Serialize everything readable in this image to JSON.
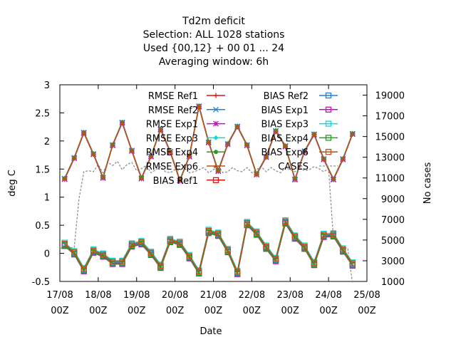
{
  "chart_data": {
    "type": "line",
    "title_lines": [
      "Td2m deficit",
      "Selection: ALL    1028 stations",
      "Used {00,12} + 00 01 ... 24",
      "Averaging window:  6h"
    ],
    "xlabel": "Date",
    "ylabel": "deg C",
    "y2label": "No cases",
    "xlim": [
      0,
      192
    ],
    "ylim": [
      -0.5,
      3
    ],
    "y2lim": [
      1000,
      20000
    ],
    "grid": false,
    "legend_position": "top-inside",
    "x_ticks": [
      {
        "x": 0,
        "line1": "17/08",
        "line2": "00Z"
      },
      {
        "x": 24,
        "line1": "18/08",
        "line2": "00Z"
      },
      {
        "x": 48,
        "line1": "19/08",
        "line2": "00Z"
      },
      {
        "x": 72,
        "line1": "20/08",
        "line2": "00Z"
      },
      {
        "x": 96,
        "line1": "21/08",
        "line2": "00Z"
      },
      {
        "x": 120,
        "line1": "22/08",
        "line2": "00Z"
      },
      {
        "x": 144,
        "line1": "23/08",
        "line2": "00Z"
      },
      {
        "x": 168,
        "line1": "24/08",
        "line2": "00Z"
      },
      {
        "x": 192,
        "line1": "25/08",
        "line2": "00Z"
      }
    ],
    "y_ticks": [
      {
        "v": 3,
        "label": "3"
      },
      {
        "v": 2.5,
        "label": "2.5"
      },
      {
        "v": 2,
        "label": "2"
      },
      {
        "v": 1.5,
        "label": "1.5"
      },
      {
        "v": 1,
        "label": "1"
      },
      {
        "v": 0.5,
        "label": "0.5"
      },
      {
        "v": 0,
        "label": "0"
      },
      {
        "v": -0.5,
        "label": "-0.5"
      }
    ],
    "y2_ticks": [
      {
        "v": 19000,
        "label": "19000"
      },
      {
        "v": 17000,
        "label": "17000"
      },
      {
        "v": 15000,
        "label": "15000"
      },
      {
        "v": 13000,
        "label": "13000"
      },
      {
        "v": 11000,
        "label": "11000"
      },
      {
        "v": 9000,
        "label": "9000"
      },
      {
        "v": 7000,
        "label": "7000"
      },
      {
        "v": 5000,
        "label": "5000"
      },
      {
        "v": 3000,
        "label": "3000"
      },
      {
        "v": 1000,
        "label": "1000"
      }
    ],
    "x": [
      3,
      9,
      15,
      21,
      27,
      33,
      39,
      45,
      51,
      57,
      63,
      69,
      75,
      81,
      87,
      93,
      99,
      105,
      111,
      117,
      123,
      129,
      135,
      141,
      147,
      153,
      159,
      165,
      171,
      177,
      183
    ],
    "rmse_base": [
      1.33,
      1.7,
      2.15,
      1.77,
      1.35,
      1.93,
      2.33,
      1.83,
      1.34,
      1.73,
      2.21,
      1.81,
      1.3,
      1.73,
      2.62,
      1.98,
      1.47,
      1.95,
      2.26,
      1.93,
      1.41,
      1.72,
      2.18,
      1.91,
      1.32,
      1.82,
      2.12,
      1.68,
      1.32,
      1.68,
      2.13
    ],
    "bias_base": [
      0.17,
      0.02,
      -0.28,
      0.05,
      -0.02,
      -0.15,
      -0.15,
      0.16,
      0.2,
      0.01,
      -0.22,
      0.24,
      0.19,
      -0.05,
      -0.32,
      0.4,
      0.35,
      0.06,
      -0.33,
      0.54,
      0.37,
      0.12,
      -0.1,
      0.57,
      0.3,
      0.12,
      -0.17,
      0.33,
      0.34,
      0.07,
      -0.18
    ],
    "cases_x": [
      0,
      3,
      6,
      9,
      12,
      15,
      18,
      21,
      24,
      27,
      30,
      33,
      36,
      39,
      42,
      45,
      48,
      51,
      54,
      57,
      60,
      63,
      66,
      69,
      72,
      75,
      78,
      81,
      84,
      87,
      90,
      93,
      96,
      99,
      102,
      105,
      108,
      111,
      114,
      117,
      120,
      123,
      126,
      129,
      132,
      135,
      138,
      141,
      144,
      147,
      150,
      153,
      156,
      159,
      162,
      165,
      168,
      171,
      174,
      177,
      180,
      183
    ],
    "cases_values": [
      4200,
      4300,
      4250,
      4300,
      9000,
      11600,
      11700,
      11600,
      12300,
      11500,
      12500,
      12200,
      12600,
      11800,
      12300,
      12500,
      11700,
      11900,
      12200,
      11500,
      11800,
      12100,
      11600,
      11500,
      11800,
      11700,
      12200,
      11500,
      11600,
      11800,
      12000,
      11500,
      11800,
      12200,
      11500,
      11600,
      12000,
      11700,
      11600,
      12000,
      11500,
      11800,
      12100,
      11600,
      12000,
      11700,
      11500,
      12000,
      11800,
      11600,
      12000,
      11700,
      11800,
      12100,
      11900,
      11600,
      11900,
      5200,
      4800,
      4300,
      4200,
      800
    ],
    "series": [
      {
        "name": "RMSE Ref1",
        "color": "#e01010",
        "marker": "plus",
        "kind": "rmse",
        "offset": 0.0
      },
      {
        "name": "RMSE Ref2",
        "color": "#1e7fe0",
        "marker": "cross",
        "kind": "rmse",
        "offset": 0.0
      },
      {
        "name": "RMSE Exp1",
        "color": "#c010c0",
        "marker": "star",
        "kind": "rmse",
        "offset": -0.01
      },
      {
        "name": "RMSE Exp3",
        "color": "#10d8d8",
        "marker": "diamond",
        "kind": "rmse",
        "offset": 0.01
      },
      {
        "name": "RMSE Exp4",
        "color": "#20a020",
        "marker": "circle",
        "kind": "rmse",
        "offset": 0.0
      },
      {
        "name": "RMSE Exp6",
        "color": "#c05010",
        "marker": "triangle",
        "kind": "rmse",
        "offset": 0.0
      },
      {
        "name": "BIAS Ref1",
        "color": "#e01010",
        "marker": "square",
        "kind": "bias",
        "offset": 0.0
      },
      {
        "name": "BIAS Ref2",
        "color": "#1e7fe0",
        "marker": "square",
        "kind": "bias",
        "offset": -0.02
      },
      {
        "name": "BIAS Exp1",
        "color": "#c010c0",
        "marker": "square",
        "kind": "bias",
        "offset": -0.04
      },
      {
        "name": "BIAS Exp3",
        "color": "#10d8d8",
        "marker": "square",
        "kind": "bias",
        "offset": 0.02
      },
      {
        "name": "BIAS Exp4",
        "color": "#20a020",
        "marker": "square",
        "kind": "bias",
        "offset": -0.03
      },
      {
        "name": "BIAS Exp6",
        "color": "#c05010",
        "marker": "square",
        "kind": "bias",
        "offset": 0.0
      },
      {
        "name": "CASES",
        "color": "#909090",
        "marker": "none",
        "kind": "cases",
        "offset": 0
      }
    ]
  }
}
